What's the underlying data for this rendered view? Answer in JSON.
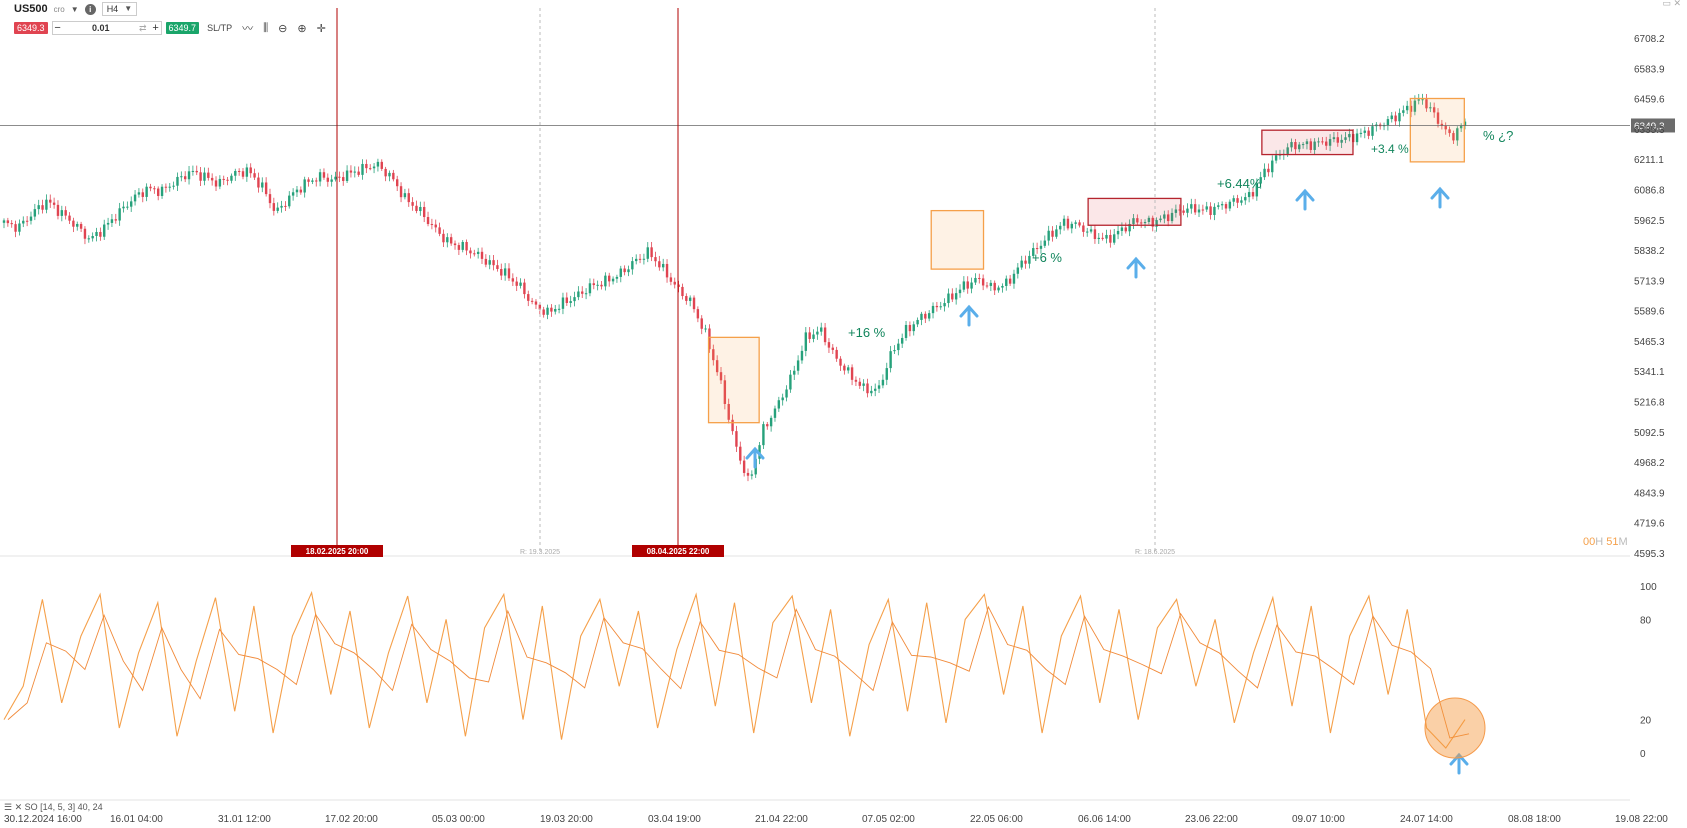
{
  "toolbar": {
    "symbol": "US500",
    "symbol_sub": "cro",
    "timeframe": "H4",
    "sell_price": "6349.3",
    "buy_price": "6349.7",
    "quantity": "0.01",
    "minus": "−",
    "plus": "+",
    "sltp": "SL/TP",
    "info": "i",
    "window_controls": "▭ ✕"
  },
  "price_axis": {
    "labels": [
      "6708.2",
      "6583.9",
      "6459.6",
      "6335.3",
      "6211.1",
      "6086.8",
      "5962.5",
      "5838.2",
      "5713.9",
      "5589.6",
      "5465.3",
      "5341.1",
      "5216.8",
      "5092.5",
      "4968.2",
      "4843.9",
      "4719.6",
      "4595.3"
    ],
    "current_price": "6349.3"
  },
  "time_axis": [
    "30.12.2024 16:00",
    "16.01 04:00",
    "31.01 12:00",
    "17.02 20:00",
    "05.03 00:00",
    "19.03 20:00",
    "03.04 19:00",
    "21.04 22:00",
    "07.05 02:00",
    "22.05 06:00",
    "06.06 14:00",
    "23.06 22:00",
    "09.07 10:00",
    "24.07 14:00",
    "08.08 18:00",
    "19.08 22:00"
  ],
  "osc_axis": [
    "100",
    "80",
    "20",
    "0"
  ],
  "indicator_label": "SO [14, 5, 3] 40, 24",
  "countdown": {
    "hours": "00",
    "h": "H",
    "minutes": "51",
    "m": "M"
  },
  "vlines": [
    {
      "label": "18.02.2025 20:00",
      "type": "red"
    },
    {
      "label": "08.04.2025 22:00",
      "type": "red"
    },
    {
      "label": "R: 19.3.2025",
      "type": "dash"
    },
    {
      "label": "R: 18.6.2025",
      "type": "dash"
    }
  ],
  "annotations": [
    "+16 %",
    "+6 %",
    "+6.44%",
    "+3.4 %",
    "% ¿?"
  ],
  "colors": {
    "up": "#26a17b",
    "down": "#e04451",
    "osc": "#f5a04a",
    "arrow": "#5aaeea",
    "marker": "#b00000"
  },
  "chart_data": {
    "type": "candlestick",
    "ylim": [
      4595.3,
      6708.2
    ],
    "price_series": [
      5950,
      5930,
      5990,
      6040,
      5990,
      5940,
      5880,
      5930,
      5990,
      6050,
      6090,
      6080,
      6120,
      6160,
      6140,
      6110,
      6150,
      6165,
      6100,
      5990,
      6060,
      6110,
      6140,
      6125,
      6150,
      6170,
      6190,
      6140,
      6050,
      6000,
      5930,
      5870,
      5850,
      5820,
      5780,
      5740,
      5690,
      5610,
      5580,
      5620,
      5650,
      5690,
      5710,
      5740,
      5790,
      5830,
      5760,
      5680,
      5620,
      5490,
      5300,
      5050,
      4880,
      5100,
      5200,
      5320,
      5480,
      5510,
      5400,
      5330,
      5270,
      5260,
      5420,
      5510,
      5560,
      5600,
      5640,
      5690,
      5720,
      5680,
      5700,
      5780,
      5840,
      5900,
      5950,
      5940,
      5900,
      5880,
      5920,
      5960,
      5950,
      5970,
      6000,
      6010,
      6000,
      6020,
      6040,
      6060,
      6160,
      6230,
      6270,
      6270,
      6280,
      6290,
      6300,
      6320,
      6350,
      6380,
      6420,
      6460,
      6380,
      6300,
      6360
    ],
    "oscillator": [
      20,
      40,
      92,
      30,
      70,
      95,
      15,
      60,
      90,
      10,
      55,
      93,
      25,
      88,
      12,
      70,
      96,
      35,
      85,
      15,
      60,
      94,
      30,
      80,
      10,
      75,
      95,
      20,
      88,
      8,
      70,
      92,
      40,
      85,
      15,
      62,
      95,
      28,
      90,
      12,
      78,
      94,
      30,
      86,
      10,
      65,
      92,
      25,
      90,
      18,
      80,
      95,
      35,
      88,
      12,
      70,
      94,
      30,
      86,
      20,
      75,
      92,
      40,
      80,
      18,
      60,
      93,
      28,
      88,
      12,
      70,
      94,
      35,
      86,
      15,
      3,
      20
    ],
    "boxes": [
      {
        "start": 0.42,
        "end": 0.45,
        "low": 5130,
        "high": 5480,
        "kind": "orange"
      },
      {
        "start": 0.552,
        "end": 0.583,
        "low": 5760,
        "high": 6000,
        "kind": "orange"
      },
      {
        "start": 0.645,
        "end": 0.7,
        "low": 5940,
        "high": 6050,
        "kind": "red"
      },
      {
        "start": 0.748,
        "end": 0.802,
        "low": 6230,
        "high": 6330,
        "kind": "red"
      },
      {
        "start": 0.836,
        "end": 0.868,
        "low": 6200,
        "high": 6460,
        "kind": "orange"
      }
    ]
  }
}
